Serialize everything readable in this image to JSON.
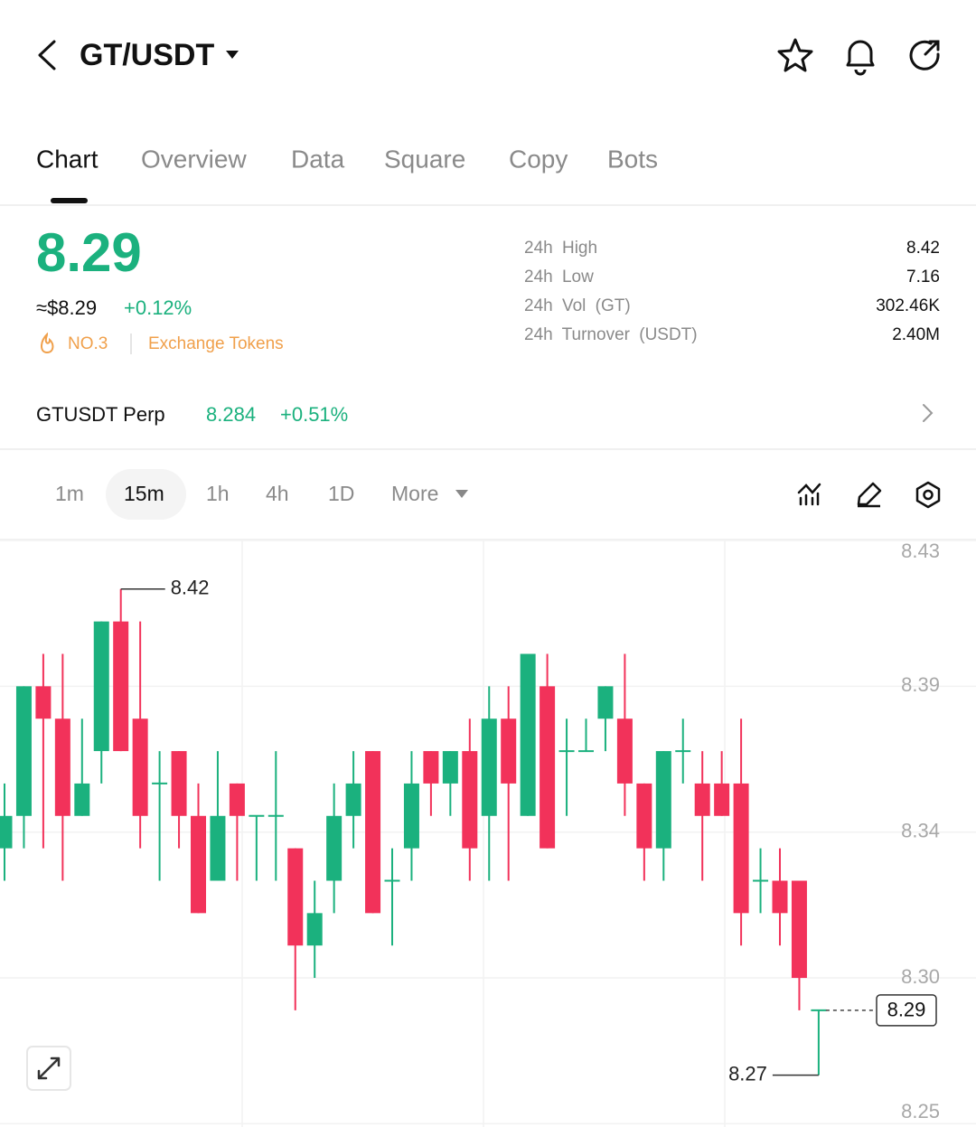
{
  "header": {
    "pair": "GT/USDT"
  },
  "tabs": [
    "Chart",
    "Overview",
    "Data",
    "Square",
    "Copy",
    "Bots"
  ],
  "ticker": {
    "price": "8.29",
    "usd_price": "≈$8.29",
    "change": "+0.12%",
    "rank": "NO.3",
    "category": "Exchange Tokens",
    "stats": [
      {
        "label": "24h High",
        "value": "8.42"
      },
      {
        "label": "24h Low",
        "value": "7.16"
      },
      {
        "label": "24h Vol (GT)",
        "value": "302.46K"
      },
      {
        "label": "24h Turnover (USDT)",
        "value": "2.40M"
      }
    ]
  },
  "perp": {
    "name": "GTUSDT Perp",
    "price": "8.284",
    "change": "+0.51%"
  },
  "intervals": [
    "1m",
    "15m",
    "1h",
    "4h",
    "1D",
    "More"
  ],
  "chart_data": {
    "type": "candlestick",
    "candles": {
      "open": [
        8.34,
        8.35,
        8.39,
        8.38,
        8.35,
        8.37,
        8.41,
        8.38,
        8.36,
        8.37,
        8.35,
        8.33,
        8.36,
        8.35,
        8.35,
        8.34,
        8.31,
        8.33,
        8.35,
        8.37,
        8.33,
        8.34,
        8.37,
        8.36,
        8.37,
        8.35,
        8.38,
        8.35,
        8.39,
        8.37,
        8.37,
        8.38,
        8.38,
        8.36,
        8.34,
        8.37,
        8.36,
        8.36,
        8.36,
        8.33,
        8.33,
        8.33,
        8.29
      ],
      "high": [
        8.36,
        8.39,
        8.4,
        8.4,
        8.38,
        8.41,
        8.42,
        8.41,
        8.37,
        8.37,
        8.36,
        8.37,
        8.36,
        8.35,
        8.37,
        8.34,
        8.33,
        8.36,
        8.37,
        8.37,
        8.34,
        8.37,
        8.37,
        8.37,
        8.38,
        8.39,
        8.39,
        8.4,
        8.4,
        8.38,
        8.38,
        8.39,
        8.4,
        8.36,
        8.37,
        8.38,
        8.37,
        8.37,
        8.38,
        8.34,
        8.34,
        8.33,
        8.29
      ],
      "low": [
        8.33,
        8.34,
        8.34,
        8.33,
        8.35,
        8.36,
        8.37,
        8.34,
        8.33,
        8.34,
        8.32,
        8.33,
        8.33,
        8.33,
        8.33,
        8.29,
        8.3,
        8.32,
        8.34,
        8.32,
        8.31,
        8.33,
        8.35,
        8.35,
        8.33,
        8.33,
        8.33,
        8.35,
        8.34,
        8.35,
        8.37,
        8.37,
        8.35,
        8.33,
        8.33,
        8.36,
        8.33,
        8.35,
        8.31,
        8.32,
        8.31,
        8.29,
        8.27
      ],
      "close": [
        8.35,
        8.39,
        8.38,
        8.35,
        8.36,
        8.41,
        8.37,
        8.35,
        8.36,
        8.35,
        8.32,
        8.35,
        8.35,
        8.35,
        8.35,
        8.31,
        8.32,
        8.35,
        8.36,
        8.32,
        8.33,
        8.36,
        8.36,
        8.37,
        8.34,
        8.38,
        8.36,
        8.4,
        8.34,
        8.37,
        8.37,
        8.39,
        8.36,
        8.34,
        8.37,
        8.37,
        8.35,
        8.35,
        8.32,
        8.33,
        8.32,
        8.3,
        8.29
      ]
    },
    "up_color": "#1bb17e",
    "down_color": "#f2325a",
    "ylim": [
      8.254,
      8.435
    ],
    "yticks": [
      {
        "value": 8.435,
        "label": "8.43"
      },
      8.39,
      {
        "value": 8.345,
        "label": "8.34"
      },
      {
        "value": 8.3,
        "label": "8.30"
      },
      {
        "value": 8.255,
        "label": "8.25"
      }
    ],
    "grid": true,
    "high_label": "8.42",
    "low_label": "8.27",
    "last_price_label": "8.29"
  }
}
